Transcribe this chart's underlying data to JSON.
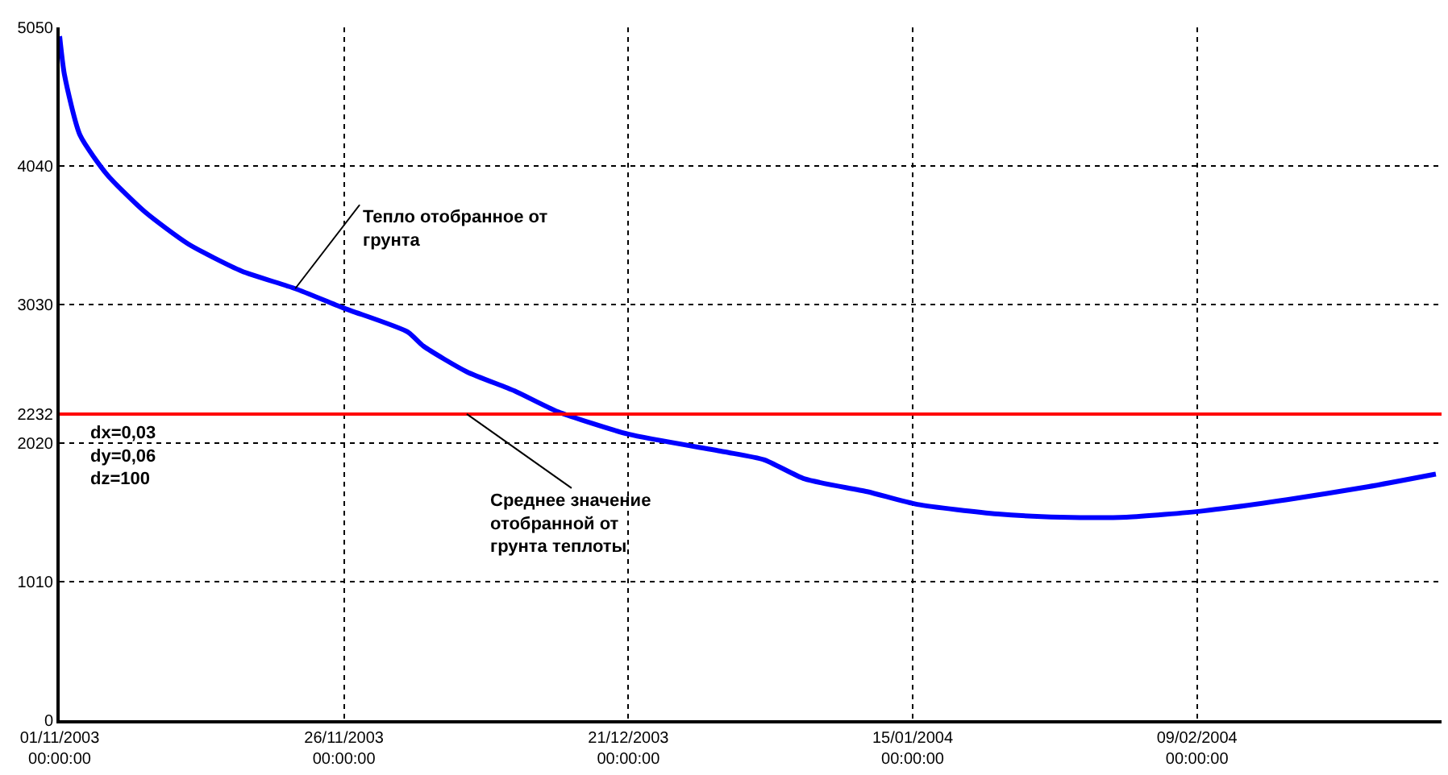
{
  "chart_data": {
    "type": "line",
    "x": [
      "2003-11-01",
      "2003-11-01T10:00",
      "2003-11-02T19:00",
      "2003-11-05T05:00",
      "2003-11-08T12:00",
      "2003-11-12T07:00",
      "2003-11-17",
      "2003-11-21T17:00",
      "2003-11-25T22:00",
      "2003-12-01T14:00",
      "2003-12-03",
      "2003-12-06T19:00",
      "2003-12-11",
      "2003-12-14T19:00",
      "2003-12-21",
      "2003-12-29T10:00",
      "2004-01-01T22:00",
      "2004-01-05T12:00",
      "2004-01-11",
      "2004-01-15T10:00",
      "2004-01-22T12:00",
      "2004-01-28",
      "2004-02-02T19:00",
      "2004-02-09T14:00",
      "2004-02-16T22:00",
      "2004-02-24",
      "2004-03-01"
    ],
    "series": [
      {
        "color": "#0000ff",
        "values": [
          4986,
          4707,
          4264,
          3973,
          3705,
          3472,
          3274,
          3146,
          3006,
          2831,
          2726,
          2540,
          2400,
          2249,
          2085,
          1957,
          1899,
          1759,
          1666,
          1573,
          1503,
          1480,
          1480,
          1526,
          1608,
          1701,
          1794
        ]
      }
    ],
    "xlim": [
      "2003-11-01",
      "2004-03-01T12:00"
    ],
    "xticks": [
      {
        "value": "2003-11-01",
        "label": "01/11/2003\n00:00:00"
      },
      {
        "value": "2003-11-26",
        "label": "26/11/2003\n00:00:00"
      },
      {
        "value": "2003-12-21",
        "label": "21/12/2003\n00:00:00"
      },
      {
        "value": "2004-01-15",
        "label": "15/01/2004\n00:00:00"
      },
      {
        "value": "2004-02-09",
        "label": "09/02/2004\n00:00:00"
      }
    ],
    "ylim": [
      0,
      5050
    ],
    "yticks": [
      0,
      1010,
      2020,
      2232,
      3030,
      4040,
      5050
    ],
    "grid": true,
    "line_style": "solid",
    "marker": "none",
    "ref_lines": [
      {
        "axis": "y",
        "value": 2232,
        "color": "#ff0000",
        "line_style": "solid"
      }
    ],
    "annotations": [
      {
        "text": "Тепло отобранное от\nгрунта",
        "x": "2003-11-21T17:00",
        "y": 3146
      },
      {
        "text": "Среднее значение\nотобранной от\nгрунта теплоты",
        "x": "2003-12-06T19:00",
        "y": 2232
      },
      "dx=0,03\ndy=0,06\ndz=100"
    ]
  }
}
